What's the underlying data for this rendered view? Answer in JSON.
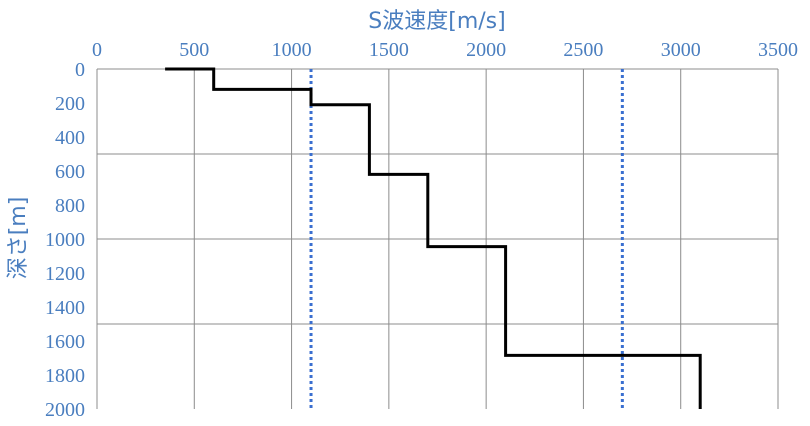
{
  "chart_data": {
    "type": "line",
    "title": "",
    "xlabel": "S波速度[m/s]",
    "ylabel": "深さ[m]",
    "xlim": [
      0,
      3500
    ],
    "ylim": [
      0,
      2000
    ],
    "y_inverted": true,
    "x_axis_position": "top",
    "x_ticks": [
      0,
      500,
      1000,
      1500,
      2000,
      2500,
      3000,
      3500
    ],
    "y_ticks": [
      0,
      200,
      400,
      600,
      800,
      1000,
      1200,
      1400,
      1600,
      1800,
      2000
    ],
    "x_gridlines": [
      500,
      1000,
      1500,
      2000,
      2500,
      3000,
      3500
    ],
    "y_gridlines": [
      500,
      1000,
      1500
    ],
    "series": [
      {
        "type": "step",
        "color": "#000000",
        "points": [
          [
            350,
            0
          ],
          [
            600,
            0
          ],
          [
            600,
            120
          ],
          [
            1100,
            120
          ],
          [
            1100,
            210
          ],
          [
            1400,
            210
          ],
          [
            1400,
            620
          ],
          [
            1700,
            620
          ],
          [
            1700,
            1045
          ],
          [
            2100,
            1045
          ],
          [
            2100,
            1685
          ],
          [
            3100,
            1685
          ],
          [
            3100,
            2000
          ]
        ]
      }
    ],
    "reference_lines": [
      {
        "x": 1100,
        "style": "dotted",
        "color": "#3a6fd0"
      },
      {
        "x": 2700,
        "style": "dotted",
        "color": "#3a6fd0"
      }
    ]
  }
}
